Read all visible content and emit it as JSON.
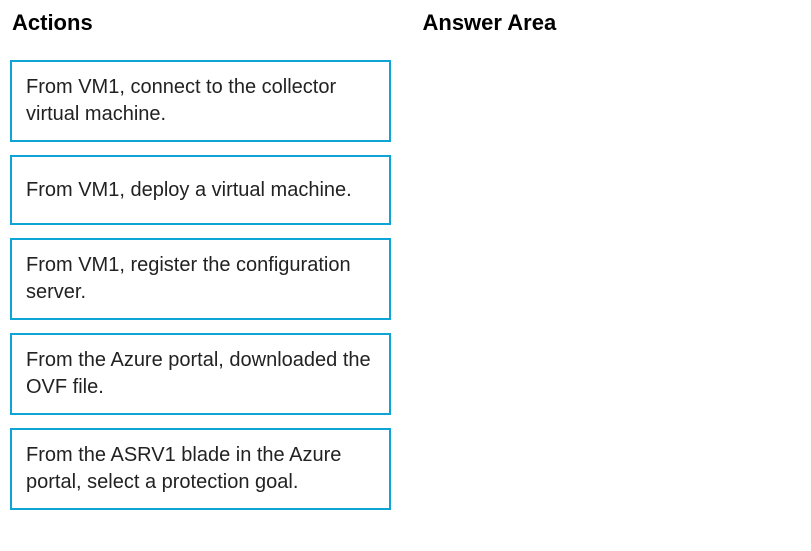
{
  "headings": {
    "actions": "Actions",
    "answer_area": "Answer Area"
  },
  "actions": [
    {
      "text": "From VM1, connect to the collector virtual machine."
    },
    {
      "text": "From VM1, deploy a virtual machine."
    },
    {
      "text": "From VM1, register the configuration server."
    },
    {
      "text": "From the Azure portal, downloaded the OVF file."
    },
    {
      "text": "From the ASRV1 blade in the Azure portal, select a protection goal."
    }
  ],
  "styles": {
    "border_color": "#0ea5d6",
    "heading_font_size": 22,
    "item_font_size": 20,
    "background_color": "#ffffff"
  }
}
